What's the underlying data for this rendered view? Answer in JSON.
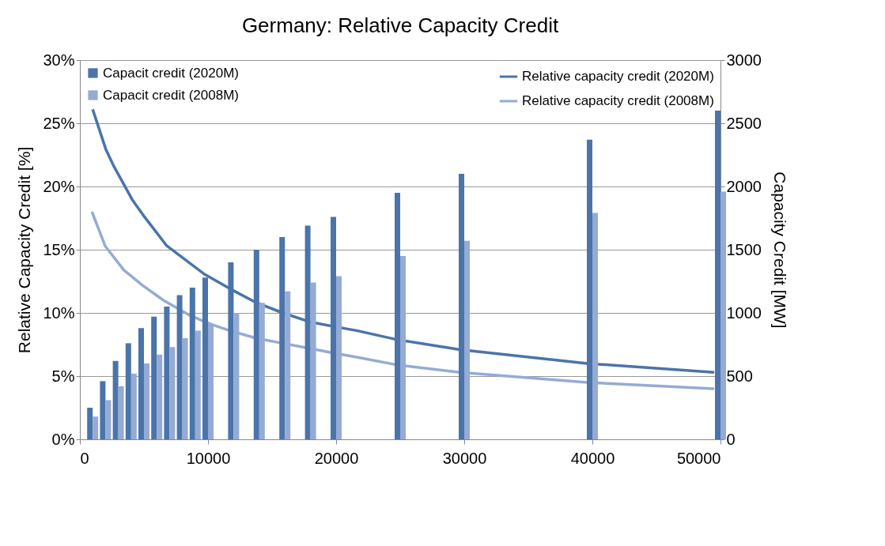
{
  "chart_data": {
    "type": "bar",
    "title": "Germany: Relative Capacity Credit",
    "ylabel": "Relative Capacity Credit [%]",
    "y2label": "Capacity Credit [MW]",
    "xlim": [
      0,
      50000
    ],
    "xticks": [
      0,
      10000,
      20000,
      30000,
      40000,
      50000
    ],
    "ylim": [
      0,
      30
    ],
    "yticks": [
      {
        "value": 0,
        "label": "0%"
      },
      {
        "value": 5,
        "label": "5%"
      },
      {
        "value": 10,
        "label": "10%"
      },
      {
        "value": 15,
        "label": "15%"
      },
      {
        "value": 20,
        "label": "20%"
      },
      {
        "value": 25,
        "label": "25%"
      },
      {
        "value": 30,
        "label": "30%"
      }
    ],
    "y2lim": [
      0,
      3000
    ],
    "y2ticks": [
      0,
      500,
      1000,
      1500,
      2000,
      2500,
      3000
    ],
    "grid": "y",
    "legend": "top",
    "series": [
      {
        "name": "Capacit credit (2020M)",
        "axis": "y2",
        "color": "#4a74aa",
        "x": [
          1000,
          2000,
          3000,
          4000,
          5000,
          6000,
          7000,
          8000,
          9000,
          10000,
          12000,
          14000,
          16000,
          18000,
          20000,
          25000,
          30000,
          40000,
          50000
        ],
        "values": [
          250,
          460,
          620,
          760,
          880,
          970,
          1050,
          1140,
          1200,
          1280,
          1400,
          1500,
          1600,
          1690,
          1760,
          1950,
          2100,
          2370,
          2600
        ]
      },
      {
        "name": "Capacit credit (2008M)",
        "axis": "y2",
        "color": "#95abd3",
        "x": [
          1000,
          2000,
          3000,
          4000,
          5000,
          6000,
          7000,
          8000,
          9000,
          10000,
          12000,
          14000,
          16000,
          18000,
          20000,
          25000,
          30000,
          40000,
          50000
        ],
        "values": [
          180,
          310,
          420,
          520,
          600,
          670,
          730,
          800,
          860,
          910,
          1000,
          1080,
          1170,
          1240,
          1290,
          1450,
          1570,
          1790,
          1960
        ]
      },
      {
        "name": "Relative capacity credit (2020M)",
        "type": "line",
        "color": "#4a74aa",
        "x": [
          1000,
          2040,
          2650,
          4120,
          5040,
          6790,
          9670,
          11730,
          13790,
          15840,
          17900,
          19960,
          21600,
          24700,
          29670,
          39590,
          49510
        ],
        "values": [
          26.1,
          22.9,
          21.6,
          18.9,
          17.6,
          15.3,
          13.1,
          11.9,
          10.8,
          10.0,
          9.3,
          8.9,
          8.6,
          7.9,
          7.1,
          6.0,
          5.3
        ]
      },
      {
        "name": "Relative capacity credit (2008M)",
        "type": "line",
        "color": "#95abd3",
        "x": [
          940,
          1970,
          3420,
          4870,
          6520,
          8590,
          10240,
          11690,
          13750,
          15820,
          17880,
          19950,
          21610,
          24700,
          29670,
          39590,
          49510
        ],
        "values": [
          18.0,
          15.3,
          13.4,
          12.2,
          11.0,
          9.8,
          9.1,
          8.6,
          8.0,
          7.6,
          7.2,
          6.8,
          6.5,
          5.9,
          5.3,
          4.5,
          4.0
        ]
      }
    ]
  }
}
